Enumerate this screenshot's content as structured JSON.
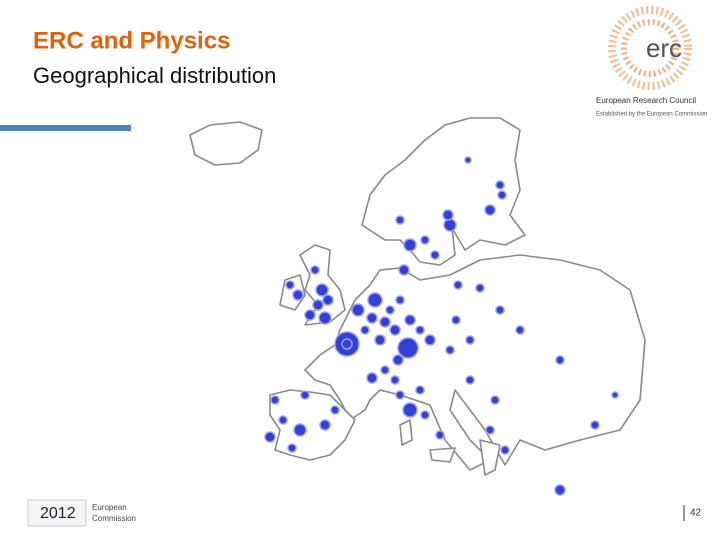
{
  "header": {
    "title": "ERC and Physics",
    "subtitle": "Geographical distribution"
  },
  "logo": {
    "text": "erc",
    "name": "European Research Council",
    "tagline": "Established by the European Commission"
  },
  "footer": {
    "year": "2012",
    "ec_line1": "European",
    "ec_line2": "Commission",
    "page": "42"
  }
}
